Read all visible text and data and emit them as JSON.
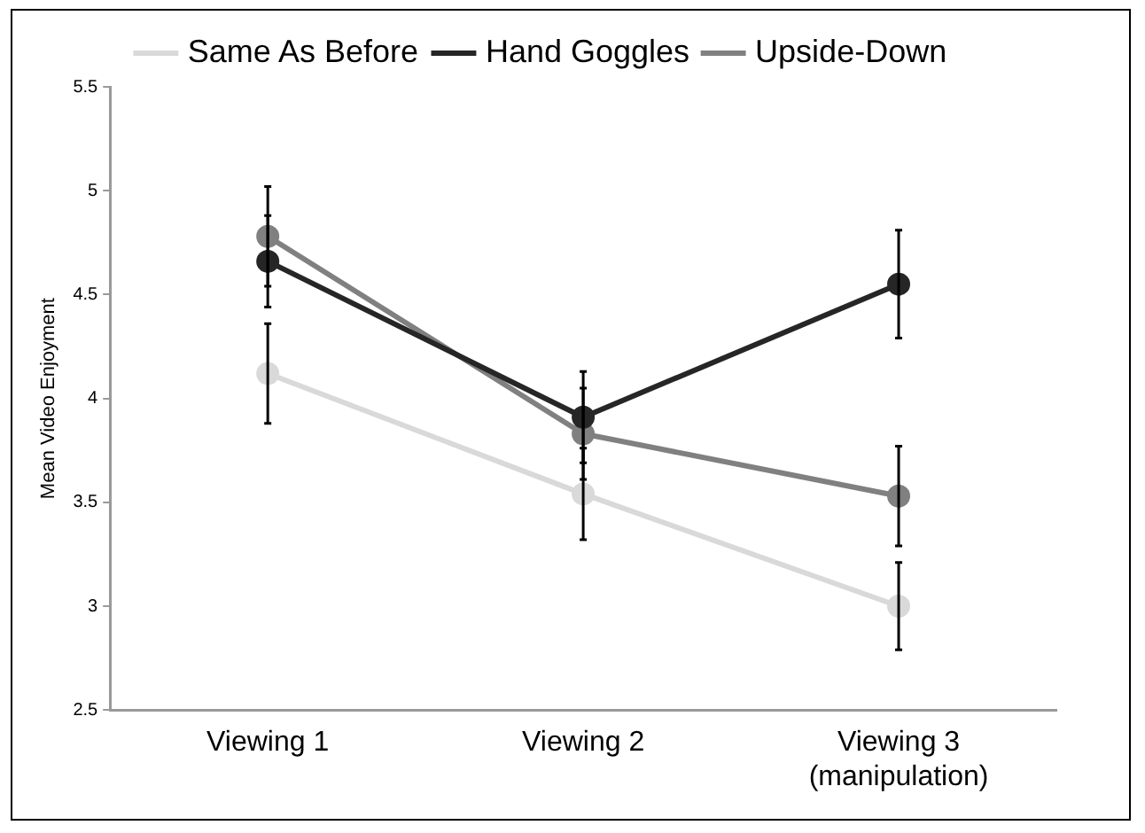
{
  "chart_data": {
    "type": "line",
    "ylabel": "Mean Video Enjoyment",
    "categories": [
      "Viewing 1",
      "Viewing 2",
      "Viewing 3\n(manipulation)"
    ],
    "series": [
      {
        "name": "Same As Before",
        "color": "#d9d9d9",
        "values": [
          4.12,
          3.54,
          3.0
        ],
        "errors": [
          0.24,
          0.22,
          0.21
        ]
      },
      {
        "name": "Hand Goggles",
        "color": "#262626",
        "values": [
          4.66,
          3.91,
          4.55
        ],
        "errors": [
          0.22,
          0.22,
          0.26
        ]
      },
      {
        "name": "Upside-Down",
        "color": "#808080",
        "values": [
          4.78,
          3.83,
          3.53
        ],
        "errors": [
          0.24,
          0.22,
          0.24
        ]
      }
    ],
    "ylim": [
      2.5,
      5.5
    ],
    "yticks": [
      2.5,
      3,
      3.5,
      4,
      4.5,
      5,
      5.5
    ],
    "grid": false,
    "legend": "top",
    "marker": "circle",
    "line_style": "solid"
  }
}
